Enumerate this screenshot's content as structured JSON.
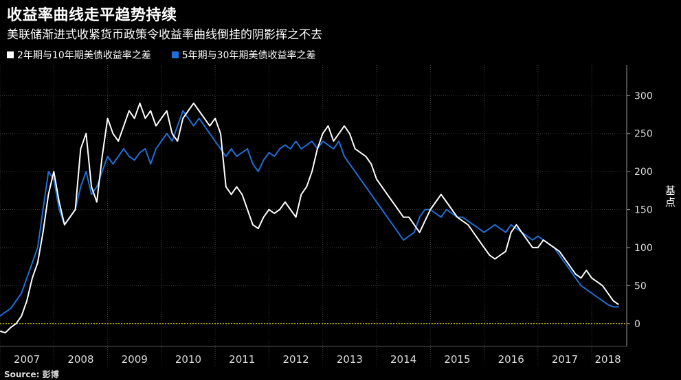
{
  "header": {
    "title": "收益率曲线走平趋势持续",
    "subtitle": "美联储渐进式收紧货币政策令收益率曲线倒挂的阴影挥之不去"
  },
  "legend": {
    "items": [
      {
        "label": "2年期与10年期美债收益率之差",
        "color": "#ffffff"
      },
      {
        "label": "5年期与30年期美债收益率之差",
        "color": "#1e6fd9"
      }
    ]
  },
  "footer": {
    "source": "Source: 彭博"
  },
  "chart_data": {
    "type": "line",
    "title": "收益率曲线走平趋势持续",
    "subtitle": "美联储渐进式收紧货币政策令收益率曲线倒挂的阴影挥之不去",
    "xlabel": "",
    "ylabel": "基点",
    "x_ticks": [
      "2007",
      "2008",
      "2009",
      "2010",
      "2011",
      "2012",
      "2013",
      "2014",
      "2015",
      "2016",
      "2017",
      "2018"
    ],
    "xlim": [
      2007.0,
      2018.65
    ],
    "ylim": [
      -30,
      340
    ],
    "y_ticks": [
      0,
      50,
      100,
      150,
      200,
      250,
      300
    ],
    "reference_line": {
      "value": 0,
      "color": "#d4b800"
    },
    "series": [
      {
        "name": "2年期与10年期美债收益率之差",
        "color": "#ffffff",
        "x": [
          2007.0,
          2007.1,
          2007.2,
          2007.3,
          2007.4,
          2007.5,
          2007.6,
          2007.7,
          2007.8,
          2007.9,
          2008.0,
          2008.1,
          2008.2,
          2008.3,
          2008.4,
          2008.5,
          2008.6,
          2008.7,
          2008.8,
          2008.9,
          2009.0,
          2009.1,
          2009.2,
          2009.3,
          2009.4,
          2009.5,
          2009.6,
          2009.7,
          2009.8,
          2009.9,
          2010.0,
          2010.1,
          2010.2,
          2010.3,
          2010.4,
          2010.5,
          2010.6,
          2010.7,
          2010.8,
          2010.9,
          2011.0,
          2011.1,
          2011.2,
          2011.3,
          2011.4,
          2011.5,
          2011.6,
          2011.7,
          2011.8,
          2011.9,
          2012.0,
          2012.1,
          2012.2,
          2012.3,
          2012.4,
          2012.5,
          2012.6,
          2012.7,
          2012.8,
          2012.9,
          2013.0,
          2013.1,
          2013.2,
          2013.3,
          2013.4,
          2013.5,
          2013.6,
          2013.7,
          2013.8,
          2013.9,
          2014.0,
          2014.1,
          2014.2,
          2014.3,
          2014.4,
          2014.5,
          2014.6,
          2014.7,
          2014.8,
          2014.9,
          2015.0,
          2015.1,
          2015.2,
          2015.3,
          2015.4,
          2015.5,
          2015.6,
          2015.7,
          2015.8,
          2015.9,
          2016.0,
          2016.1,
          2016.2,
          2016.3,
          2016.4,
          2016.5,
          2016.6,
          2016.7,
          2016.8,
          2016.9,
          2017.0,
          2017.1,
          2017.2,
          2017.3,
          2017.4,
          2017.5,
          2017.6,
          2017.7,
          2017.8,
          2017.9,
          2018.0,
          2018.1,
          2018.2,
          2018.3,
          2018.4,
          2018.5
        ],
        "values": [
          -10,
          -12,
          -5,
          0,
          10,
          30,
          60,
          80,
          120,
          170,
          200,
          160,
          130,
          140,
          150,
          230,
          250,
          180,
          160,
          220,
          270,
          250,
          240,
          260,
          280,
          270,
          290,
          270,
          280,
          260,
          270,
          280,
          250,
          240,
          270,
          280,
          290,
          280,
          270,
          260,
          270,
          250,
          180,
          170,
          180,
          170,
          150,
          130,
          125,
          140,
          150,
          145,
          150,
          160,
          150,
          140,
          170,
          180,
          200,
          230,
          250,
          260,
          240,
          250,
          260,
          250,
          230,
          225,
          220,
          210,
          190,
          180,
          170,
          160,
          150,
          140,
          140,
          130,
          120,
          135,
          150,
          160,
          170,
          160,
          150,
          140,
          135,
          130,
          120,
          110,
          100,
          90,
          85,
          90,
          95,
          120,
          130,
          120,
          110,
          100,
          100,
          110,
          105,
          100,
          95,
          85,
          75,
          65,
          60,
          70,
          60,
          55,
          50,
          40,
          30,
          25
        ]
      },
      {
        "name": "5年期与30年期美债收益率之差",
        "color": "#1e6fd9",
        "x": [
          2007.0,
          2007.1,
          2007.2,
          2007.3,
          2007.4,
          2007.5,
          2007.6,
          2007.7,
          2007.8,
          2007.9,
          2008.0,
          2008.1,
          2008.2,
          2008.3,
          2008.4,
          2008.5,
          2008.6,
          2008.7,
          2008.8,
          2008.9,
          2009.0,
          2009.1,
          2009.2,
          2009.3,
          2009.4,
          2009.5,
          2009.6,
          2009.7,
          2009.8,
          2009.9,
          2010.0,
          2010.1,
          2010.2,
          2010.3,
          2010.4,
          2010.5,
          2010.6,
          2010.7,
          2010.8,
          2010.9,
          2011.0,
          2011.1,
          2011.2,
          2011.3,
          2011.4,
          2011.5,
          2011.6,
          2011.7,
          2011.8,
          2011.9,
          2012.0,
          2012.1,
          2012.2,
          2012.3,
          2012.4,
          2012.5,
          2012.6,
          2012.7,
          2012.8,
          2012.9,
          2013.0,
          2013.1,
          2013.2,
          2013.3,
          2013.4,
          2013.5,
          2013.6,
          2013.7,
          2013.8,
          2013.9,
          2014.0,
          2014.1,
          2014.2,
          2014.3,
          2014.4,
          2014.5,
          2014.6,
          2014.7,
          2014.8,
          2014.9,
          2015.0,
          2015.1,
          2015.2,
          2015.3,
          2015.4,
          2015.5,
          2015.6,
          2015.7,
          2015.8,
          2015.9,
          2016.0,
          2016.1,
          2016.2,
          2016.3,
          2016.4,
          2016.5,
          2016.6,
          2016.7,
          2016.8,
          2016.9,
          2017.0,
          2017.1,
          2017.2,
          2017.3,
          2017.4,
          2017.5,
          2017.6,
          2017.7,
          2017.8,
          2017.9,
          2018.0,
          2018.1,
          2018.2,
          2018.3,
          2018.4,
          2018.5
        ],
        "values": [
          10,
          15,
          20,
          30,
          40,
          60,
          80,
          100,
          150,
          200,
          190,
          150,
          130,
          140,
          150,
          180,
          200,
          170,
          180,
          200,
          220,
          210,
          220,
          230,
          220,
          215,
          225,
          230,
          210,
          230,
          240,
          250,
          240,
          260,
          280,
          270,
          260,
          270,
          260,
          250,
          240,
          230,
          220,
          230,
          220,
          225,
          230,
          210,
          200,
          215,
          225,
          220,
          230,
          235,
          230,
          240,
          230,
          235,
          240,
          230,
          240,
          235,
          230,
          240,
          220,
          210,
          200,
          190,
          180,
          170,
          160,
          150,
          140,
          130,
          120,
          110,
          115,
          120,
          140,
          150,
          150,
          145,
          140,
          150,
          145,
          140,
          140,
          135,
          130,
          125,
          120,
          125,
          130,
          125,
          120,
          130,
          125,
          120,
          115,
          110,
          115,
          110,
          105,
          100,
          90,
          80,
          70,
          60,
          50,
          45,
          40,
          35,
          30,
          25,
          22,
          22
        ]
      }
    ]
  }
}
